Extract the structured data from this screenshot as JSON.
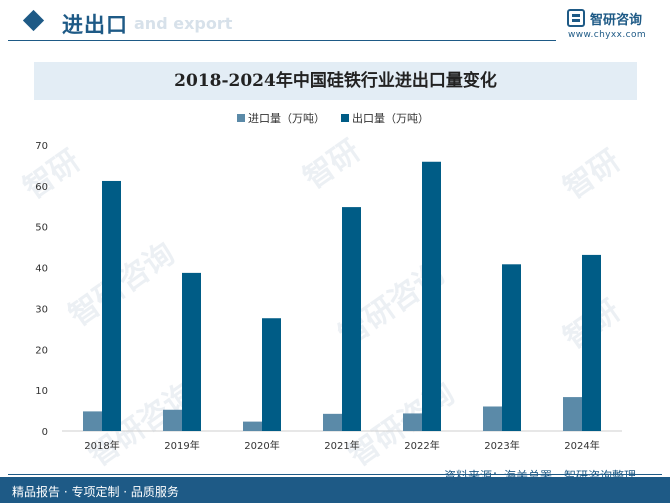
{
  "header": {
    "title": "进出口",
    "title_en": "and export",
    "brand_name": "智研咨询",
    "brand_url": "www.chyxx.com"
  },
  "colors": {
    "accent": "#1e5a86",
    "import_bar": "#5b8aa8",
    "export_bar": "#005c86"
  },
  "chart_data": {
    "type": "bar",
    "title": "2018-2024年中国硅铁行业进出口量变化",
    "categories": [
      "2018年",
      "2019年",
      "2020年",
      "2021年",
      "2022年",
      "2023年",
      "2024年"
    ],
    "series": [
      {
        "name": "进口量（万吨）",
        "values": [
          4.8,
          5.2,
          2.3,
          4.2,
          4.3,
          6.0,
          8.3
        ]
      },
      {
        "name": "出口量（万吨）",
        "values": [
          61.2,
          38.7,
          27.6,
          54.8,
          65.9,
          40.8,
          43.1
        ]
      }
    ],
    "yticks": [
      0,
      10,
      20,
      30,
      40,
      50,
      60,
      70
    ],
    "ylim": [
      0,
      70
    ],
    "legend_position": "top-center"
  },
  "footer": {
    "left": "精品报告 · 专项定制 · 品质服务",
    "source": "资料来源：海关总署、智研咨询整理"
  }
}
